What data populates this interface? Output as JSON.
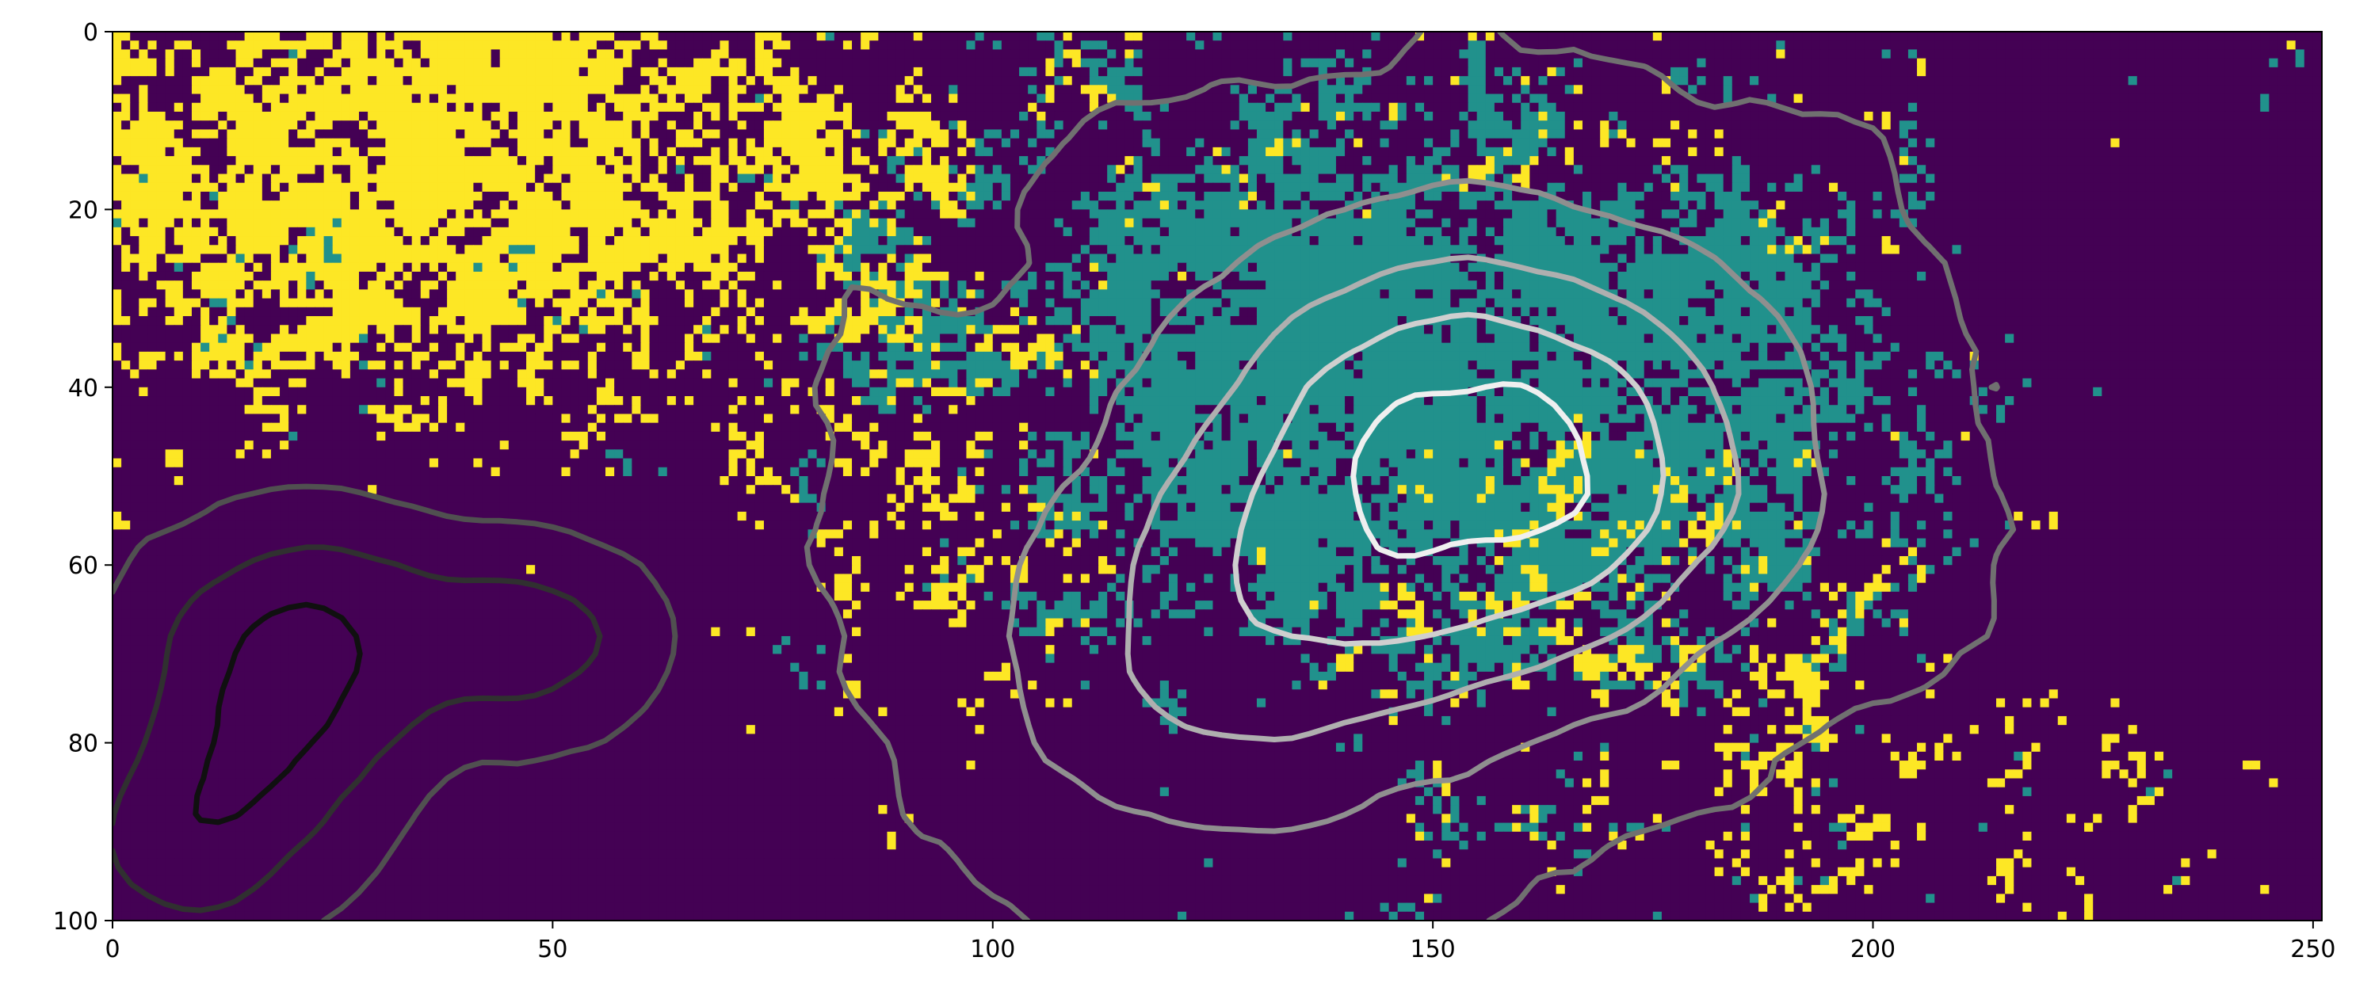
{
  "chart_data": {
    "type": "heatmap",
    "title": "",
    "xlabel": "",
    "ylabel": "",
    "grid": false,
    "legend": "none",
    "colormap": "viridis",
    "categories": [
      0,
      1,
      2
    ],
    "category_colors": [
      "#440154",
      "#21918c",
      "#fde725"
    ],
    "xlim": [
      0,
      251
    ],
    "ylim": [
      100,
      0
    ],
    "n_cols": 251,
    "n_rows": 100,
    "x_ticks": [
      0,
      50,
      100,
      150,
      200,
      250
    ],
    "x_tick_labels": [
      "0",
      "50",
      "100",
      "150",
      "200",
      "250"
    ],
    "y_ticks": [
      0,
      20,
      40,
      60,
      80,
      100
    ],
    "y_tick_labels": [
      "0",
      "20",
      "40",
      "60",
      "80",
      "100"
    ],
    "region_summary": [
      {
        "region": "upper-left",
        "dominant": 2,
        "x": [
          0,
          80
        ],
        "y": [
          0,
          45
        ]
      },
      {
        "region": "lower-left",
        "dominant": 0,
        "x": [
          0,
          70
        ],
        "y": [
          45,
          100
        ]
      },
      {
        "region": "center",
        "dominant": 1,
        "x": [
          95,
          200
        ],
        "y": [
          10,
          85
        ]
      },
      {
        "region": "center-core",
        "dominant": 2,
        "x": [
          140,
          175
        ],
        "y": [
          40,
          70
        ]
      },
      {
        "region": "right",
        "dominant": 0,
        "x": [
          200,
          251
        ],
        "y": [
          0,
          100
        ]
      }
    ],
    "contour_overlay": {
      "colormap": "gray",
      "levels": 8,
      "low_centers": [
        {
          "x": 18,
          "y": 78
        },
        {
          "x": 48,
          "y": 68
        },
        {
          "x": 20,
          "y": 65
        },
        {
          "x": 8,
          "y": 92
        }
      ],
      "high_centers": [
        {
          "x": 165,
          "y": 50
        },
        {
          "x": 150,
          "y": 45
        },
        {
          "x": 125,
          "y": 72
        }
      ]
    }
  }
}
